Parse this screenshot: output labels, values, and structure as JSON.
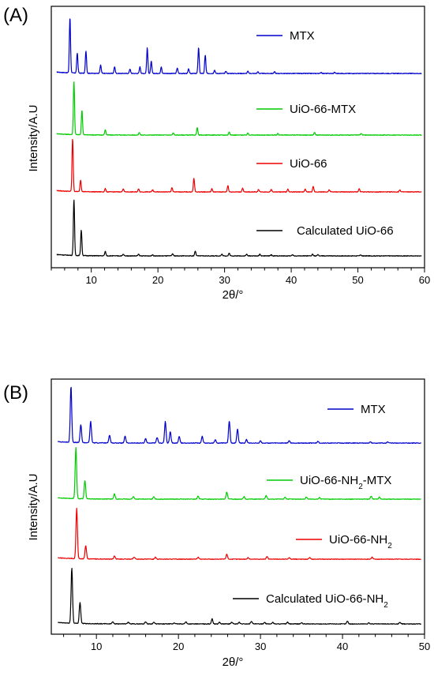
{
  "chart_data": [
    {
      "type": "line",
      "panel_label": "(A)",
      "xlabel": "2θ/°",
      "ylabel": "Intensity/A.U",
      "xlim": [
        4,
        60
      ],
      "x_ticks": [
        10,
        20,
        30,
        40,
        50,
        60
      ],
      "grid": false,
      "legend_placement": "inline-right",
      "series": [
        {
          "name": "MTX",
          "color": "#0000cc",
          "baseline": 0.0,
          "peaks": [
            [
              6.8,
              1.0
            ],
            [
              7.9,
              0.36
            ],
            [
              9.2,
              0.4
            ],
            [
              11.4,
              0.15
            ],
            [
              13.5,
              0.12
            ],
            [
              15.8,
              0.08
            ],
            [
              17.3,
              0.12
            ],
            [
              18.4,
              0.46
            ],
            [
              19.0,
              0.22
            ],
            [
              20.5,
              0.12
            ],
            [
              22.9,
              0.1
            ],
            [
              24.6,
              0.08
            ],
            [
              26.1,
              0.47
            ],
            [
              27.1,
              0.33
            ],
            [
              28.5,
              0.06
            ],
            [
              30.2,
              0.04
            ],
            [
              33.5,
              0.04
            ],
            [
              35.0,
              0.03
            ],
            [
              37.5,
              0.03
            ],
            [
              44.5,
              0.02
            ],
            [
              46.5,
              0.02
            ]
          ]
        },
        {
          "name": "UiO-66-MTX",
          "color": "#00cc00",
          "baseline": 0.0,
          "peaks": [
            [
              7.4,
              1.0
            ],
            [
              8.6,
              0.46
            ],
            [
              12.1,
              0.1
            ],
            [
              17.2,
              0.05
            ],
            [
              22.3,
              0.04
            ],
            [
              25.9,
              0.14
            ],
            [
              30.7,
              0.06
            ],
            [
              33.5,
              0.04
            ],
            [
              38.0,
              0.03
            ],
            [
              43.5,
              0.05
            ],
            [
              50.5,
              0.03
            ]
          ]
        },
        {
          "name": "UiO-66",
          "color": "#ee0000",
          "baseline": 0.0,
          "peaks": [
            [
              7.2,
              1.0
            ],
            [
              8.4,
              0.22
            ],
            [
              12.1,
              0.06
            ],
            [
              14.8,
              0.06
            ],
            [
              17.1,
              0.06
            ],
            [
              19.2,
              0.04
            ],
            [
              22.1,
              0.08
            ],
            [
              25.4,
              0.26
            ],
            [
              28.1,
              0.06
            ],
            [
              30.5,
              0.12
            ],
            [
              32.7,
              0.07
            ],
            [
              35.1,
              0.05
            ],
            [
              37.0,
              0.05
            ],
            [
              39.5,
              0.05
            ],
            [
              42.1,
              0.05
            ],
            [
              43.3,
              0.1
            ],
            [
              45.7,
              0.04
            ],
            [
              50.2,
              0.06
            ],
            [
              56.3,
              0.04
            ]
          ]
        },
        {
          "name": "Calculated UiO-66",
          "color": "#000000",
          "baseline": 0.0,
          "peaks": [
            [
              7.4,
              1.0
            ],
            [
              8.5,
              0.46
            ],
            [
              12.1,
              0.08
            ],
            [
              14.8,
              0.03
            ],
            [
              17.1,
              0.03
            ],
            [
              19.2,
              0.02
            ],
            [
              22.2,
              0.04
            ],
            [
              25.6,
              0.09
            ],
            [
              29.6,
              0.03
            ],
            [
              30.7,
              0.05
            ],
            [
              33.3,
              0.03
            ],
            [
              35.3,
              0.03
            ],
            [
              37.0,
              0.02
            ],
            [
              40.2,
              0.02
            ],
            [
              43.2,
              0.03
            ],
            [
              44.0,
              0.02
            ],
            [
              50.4,
              0.02
            ]
          ]
        }
      ]
    },
    {
      "type": "line",
      "panel_label": "(B)",
      "xlabel": "2θ/°",
      "ylabel": "Intensity/A.U",
      "xlim": [
        4.5,
        50
      ],
      "x_ticks": [
        10,
        20,
        30,
        40,
        50
      ],
      "grid": false,
      "legend_placement": "inline-right",
      "series": [
        {
          "name": "MTX",
          "color": "#0000cc",
          "baseline": 0.0,
          "peaks": [
            [
              6.9,
              1.0
            ],
            [
              8.1,
              0.32
            ],
            [
              9.3,
              0.38
            ],
            [
              11.6,
              0.14
            ],
            [
              13.5,
              0.12
            ],
            [
              16.0,
              0.08
            ],
            [
              17.4,
              0.1
            ],
            [
              18.4,
              0.38
            ],
            [
              19.0,
              0.2
            ],
            [
              20.1,
              0.12
            ],
            [
              22.9,
              0.12
            ],
            [
              24.5,
              0.06
            ],
            [
              26.2,
              0.4
            ],
            [
              27.2,
              0.25
            ],
            [
              28.3,
              0.06
            ],
            [
              30.0,
              0.04
            ],
            [
              33.5,
              0.04
            ],
            [
              37.0,
              0.03
            ],
            [
              43.4,
              0.02
            ],
            [
              45.5,
              0.02
            ]
          ]
        },
        {
          "name": "UiO-66-NH2-MTX",
          "color": "#00cc00",
          "baseline": 0.0,
          "peaks": [
            [
              7.5,
              1.0
            ],
            [
              8.6,
              0.36
            ],
            [
              12.2,
              0.1
            ],
            [
              14.5,
              0.05
            ],
            [
              17.0,
              0.05
            ],
            [
              22.4,
              0.06
            ],
            [
              25.9,
              0.14
            ],
            [
              28.0,
              0.05
            ],
            [
              30.7,
              0.07
            ],
            [
              33.0,
              0.04
            ],
            [
              35.6,
              0.04
            ],
            [
              37.2,
              0.03
            ],
            [
              43.5,
              0.06
            ],
            [
              44.5,
              0.04
            ]
          ]
        },
        {
          "name": "UiO-66-NH2",
          "color": "#ee0000",
          "baseline": 0.0,
          "peaks": [
            [
              7.6,
              1.0
            ],
            [
              8.7,
              0.26
            ],
            [
              12.2,
              0.06
            ],
            [
              14.6,
              0.04
            ],
            [
              17.2,
              0.04
            ],
            [
              22.4,
              0.04
            ],
            [
              25.9,
              0.1
            ],
            [
              28.5,
              0.03
            ],
            [
              30.8,
              0.05
            ],
            [
              33.5,
              0.03
            ],
            [
              36.0,
              0.03
            ],
            [
              43.6,
              0.04
            ]
          ]
        },
        {
          "name": "Calculated UiO-66-NH2",
          "color": "#000000",
          "baseline": 0.0,
          "peaks": [
            [
              7.0,
              1.0
            ],
            [
              8.0,
              0.38
            ],
            [
              12.0,
              0.04
            ],
            [
              13.9,
              0.03
            ],
            [
              16.0,
              0.04
            ],
            [
              17.0,
              0.03
            ],
            [
              19.5,
              0.02
            ],
            [
              20.9,
              0.04
            ],
            [
              24.1,
              0.09
            ],
            [
              25.0,
              0.03
            ],
            [
              26.5,
              0.03
            ],
            [
              27.4,
              0.03
            ],
            [
              28.9,
              0.05
            ],
            [
              30.5,
              0.03
            ],
            [
              31.5,
              0.03
            ],
            [
              33.3,
              0.03
            ],
            [
              35.0,
              0.02
            ],
            [
              40.6,
              0.05
            ],
            [
              43.2,
              0.02
            ],
            [
              47.0,
              0.03
            ]
          ]
        }
      ]
    }
  ]
}
